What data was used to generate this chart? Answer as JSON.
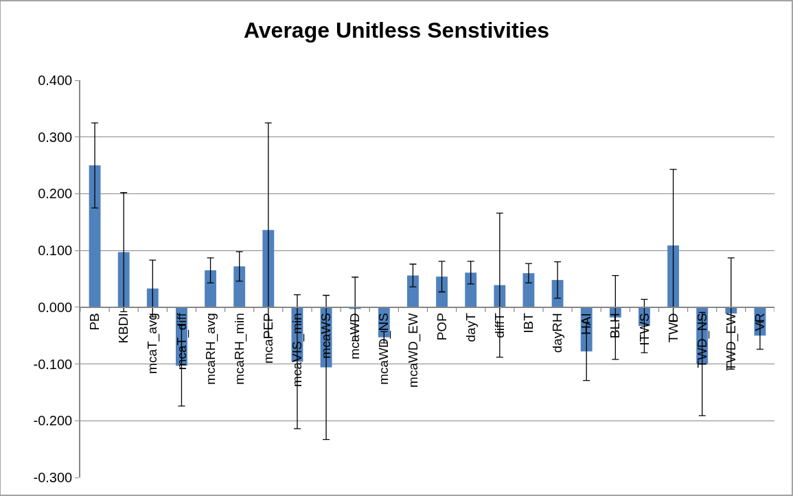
{
  "chart_data": {
    "type": "bar",
    "title": "Average Unitless Senstivities",
    "categories": [
      "PB",
      "KBDI",
      "mcaT_avg",
      "mcaT_diff",
      "mcaRH_avg",
      "mcaRH_min",
      "mcaPEP",
      "mcaVIS_min",
      "mcaWS",
      "mcaWD",
      "mcaWD_NS",
      "mcaWD_EW",
      "POP",
      "dayT",
      "diffT",
      "IBT",
      "dayRH",
      "HAI",
      "BLH",
      "ITWS",
      "TWD",
      "TWD_NS",
      "TWD_EW",
      "VR"
    ],
    "values": [
      0.25,
      0.097,
      0.033,
      -0.103,
      0.065,
      0.072,
      0.136,
      -0.096,
      -0.106,
      -0.003,
      -0.053,
      0.056,
      0.054,
      0.061,
      0.039,
      0.06,
      0.048,
      -0.078,
      -0.018,
      -0.033,
      0.109,
      -0.1,
      -0.011,
      -0.05
    ],
    "errors": [
      0.075,
      0.105,
      0.05,
      0.071,
      0.022,
      0.026,
      0.189,
      0.118,
      0.127,
      0.056,
      0.01,
      0.02,
      0.027,
      0.02,
      0.127,
      0.017,
      0.032,
      0.051,
      0.074,
      0.047,
      0.134,
      0.091,
      0.098,
      0.024
    ],
    "color": "#4f81bd",
    "ylim": [
      -0.3,
      0.4
    ],
    "yticks": [
      {
        "value": -0.3,
        "label": "-0.300"
      },
      {
        "value": -0.2,
        "label": "-0.200"
      },
      {
        "value": -0.1,
        "label": "-0.100"
      },
      {
        "value": 0,
        "label": "0.000"
      },
      {
        "value": 0.1,
        "label": "0.100"
      },
      {
        "value": 0.2,
        "label": "0.200"
      },
      {
        "value": 0.3,
        "label": "0.300"
      },
      {
        "value": 0.4,
        "label": "0.400"
      }
    ],
    "grid": "y"
  }
}
